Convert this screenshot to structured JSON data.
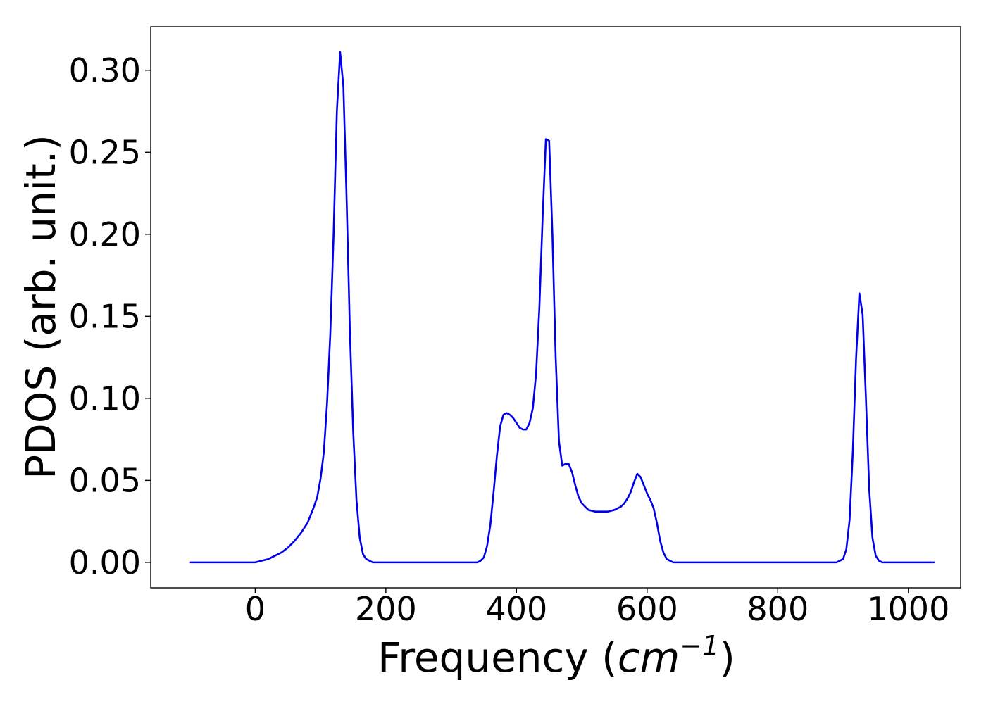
{
  "chart_data": {
    "type": "line",
    "xlabel": "Frequency",
    "xlabel_unit_base": "cm",
    "xlabel_unit_exp": "−1",
    "ylabel": "PDOS (arb. unit.)",
    "xlim": [
      -160,
      1080
    ],
    "ylim": [
      -0.0155,
      0.3265
    ],
    "xticks": [
      0,
      200,
      400,
      600,
      800,
      1000
    ],
    "yticks": [
      "0.00",
      "0.05",
      "0.10",
      "0.15",
      "0.20",
      "0.25",
      "0.30"
    ],
    "grid": false,
    "colors": {
      "line": "#0000ee",
      "axes": "#000000"
    },
    "series": [
      {
        "points": [
          [
            -100,
            0.0
          ],
          [
            -50,
            0.0
          ],
          [
            0,
            0.0
          ],
          [
            10,
            0.001
          ],
          [
            20,
            0.002
          ],
          [
            30,
            0.004
          ],
          [
            40,
            0.006
          ],
          [
            50,
            0.009
          ],
          [
            60,
            0.013
          ],
          [
            70,
            0.018
          ],
          [
            80,
            0.024
          ],
          [
            85,
            0.029
          ],
          [
            90,
            0.034
          ],
          [
            95,
            0.04
          ],
          [
            100,
            0.051
          ],
          [
            105,
            0.067
          ],
          [
            110,
            0.097
          ],
          [
            115,
            0.14
          ],
          [
            120,
            0.2
          ],
          [
            125,
            0.275
          ],
          [
            130,
            0.311
          ],
          [
            135,
            0.29
          ],
          [
            140,
            0.22
          ],
          [
            145,
            0.14
          ],
          [
            150,
            0.08
          ],
          [
            155,
            0.038
          ],
          [
            160,
            0.015
          ],
          [
            165,
            0.005
          ],
          [
            170,
            0.002
          ],
          [
            175,
            0.001
          ],
          [
            180,
            0.0
          ],
          [
            250,
            0.0
          ],
          [
            300,
            0.0
          ],
          [
            340,
            0.0
          ],
          [
            345,
            0.001
          ],
          [
            350,
            0.003
          ],
          [
            355,
            0.01
          ],
          [
            360,
            0.023
          ],
          [
            365,
            0.043
          ],
          [
            370,
            0.065
          ],
          [
            375,
            0.083
          ],
          [
            380,
            0.09
          ],
          [
            385,
            0.091
          ],
          [
            390,
            0.09
          ],
          [
            395,
            0.088
          ],
          [
            400,
            0.085
          ],
          [
            405,
            0.082
          ],
          [
            410,
            0.081
          ],
          [
            415,
            0.081
          ],
          [
            420,
            0.085
          ],
          [
            425,
            0.094
          ],
          [
            430,
            0.115
          ],
          [
            435,
            0.155
          ],
          [
            440,
            0.21
          ],
          [
            445,
            0.258
          ],
          [
            450,
            0.257
          ],
          [
            455,
            0.2
          ],
          [
            460,
            0.125
          ],
          [
            465,
            0.074
          ],
          [
            470,
            0.059
          ],
          [
            475,
            0.06
          ],
          [
            480,
            0.06
          ],
          [
            485,
            0.055
          ],
          [
            490,
            0.047
          ],
          [
            495,
            0.04
          ],
          [
            500,
            0.036
          ],
          [
            505,
            0.034
          ],
          [
            510,
            0.032
          ],
          [
            520,
            0.031
          ],
          [
            530,
            0.031
          ],
          [
            540,
            0.031
          ],
          [
            550,
            0.032
          ],
          [
            560,
            0.034
          ],
          [
            565,
            0.036
          ],
          [
            570,
            0.039
          ],
          [
            575,
            0.043
          ],
          [
            580,
            0.049
          ],
          [
            585,
            0.054
          ],
          [
            590,
            0.052
          ],
          [
            595,
            0.047
          ],
          [
            600,
            0.042
          ],
          [
            605,
            0.038
          ],
          [
            610,
            0.033
          ],
          [
            615,
            0.024
          ],
          [
            620,
            0.013
          ],
          [
            625,
            0.006
          ],
          [
            630,
            0.002
          ],
          [
            635,
            0.001
          ],
          [
            640,
            0.0
          ],
          [
            700,
            0.0
          ],
          [
            800,
            0.0
          ],
          [
            890,
            0.0
          ],
          [
            895,
            0.001
          ],
          [
            900,
            0.002
          ],
          [
            905,
            0.008
          ],
          [
            910,
            0.026
          ],
          [
            915,
            0.068
          ],
          [
            920,
            0.125
          ],
          [
            925,
            0.164
          ],
          [
            930,
            0.151
          ],
          [
            935,
            0.1
          ],
          [
            940,
            0.045
          ],
          [
            945,
            0.015
          ],
          [
            950,
            0.004
          ],
          [
            955,
            0.001
          ],
          [
            960,
            0.0
          ],
          [
            1000,
            0.0
          ],
          [
            1040,
            0.0
          ]
        ]
      }
    ]
  }
}
